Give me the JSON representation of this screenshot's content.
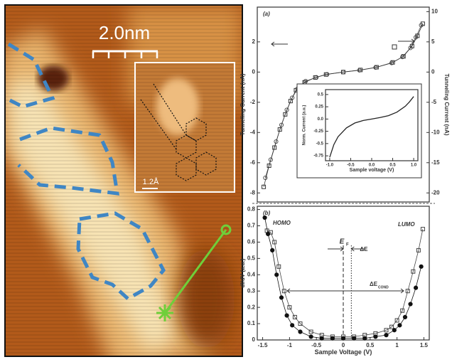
{
  "image": {
    "scale_label": "2.0nm",
    "inset_scale_label": "1.2Å"
  },
  "chart_data": [
    {
      "type": "line",
      "panel_label": "(a)",
      "ylabel": "Tunneling Current (nA)",
      "y2label": "Tunneling Current (nA)",
      "xlim": [
        -1.6,
        1.6
      ],
      "ylim": [
        -8.6,
        4.3
      ],
      "yticks": [
        2,
        0,
        -2,
        -4,
        -6,
        -8
      ],
      "y2lim": [
        -21.5,
        10.75
      ],
      "y2ticks": [
        10,
        5,
        0,
        -5,
        -10,
        -15,
        -20
      ],
      "series": [
        {
          "marker": "circle",
          "color": "#555555",
          "marker_fill": "none",
          "x": [
            -1.45,
            -1.35,
            -1.25,
            -1.15,
            -1.05,
            -0.95,
            -0.85,
            -0.7,
            -0.5,
            -0.3,
            0,
            0.3,
            0.6,
            0.9,
            1.1,
            1.25,
            1.35,
            1.45
          ],
          "values": [
            -7.0,
            -5.8,
            -4.6,
            -3.5,
            -2.5,
            -1.7,
            -1.1,
            -0.6,
            -0.35,
            -0.15,
            0,
            0.12,
            0.3,
            0.6,
            1.0,
            1.6,
            2.3,
            3.1
          ]
        },
        {
          "marker": "square",
          "color": "#333333",
          "marker_fill": "none",
          "axis": "y2",
          "x": [
            -1.48,
            -1.38,
            -1.28,
            -1.18,
            -1.08,
            -0.98,
            -0.88,
            -0.72,
            -0.52,
            -0.32,
            0,
            0.32,
            0.62,
            0.92,
            1.12,
            1.28,
            1.38,
            1.48
          ],
          "values": [
            -19.0,
            -15.5,
            -12.5,
            -9.5,
            -7.0,
            -4.8,
            -3.0,
            -1.7,
            -0.9,
            -0.4,
            0,
            0.35,
            0.8,
            1.6,
            2.6,
            4.3,
            6.0,
            8.0
          ]
        }
      ]
    },
    {
      "type": "line",
      "ylabel": "Norm. Current (a.u.)",
      "xlabel": "Sample voltage (V)",
      "xlim": [
        -1.1,
        1.1
      ],
      "ylim": [
        -0.85,
        0.6
      ],
      "yticks": [
        0.5,
        0.25,
        {
          "value": 0,
          "label": "0.0"
        },
        -0.25,
        -0.5,
        -0.75
      ],
      "xticks": [
        {
          "value": -1,
          "label": "-1.0"
        },
        -0.5,
        {
          "value": 0,
          "label": "0.0"
        },
        0.5,
        {
          "value": 1,
          "label": "1.0"
        }
      ],
      "series": [
        {
          "marker": "none",
          "color": "#222222",
          "x": [
            -1.0,
            -0.9,
            -0.8,
            -0.6,
            -0.4,
            -0.2,
            0,
            0.2,
            0.4,
            0.6,
            0.8,
            0.9,
            1.0
          ],
          "values": [
            -0.78,
            -0.52,
            -0.36,
            -0.18,
            -0.08,
            -0.03,
            0,
            0.03,
            0.07,
            0.14,
            0.26,
            0.35,
            0.46
          ]
        }
      ]
    },
    {
      "type": "line",
      "panel_label": "(b)",
      "homo_label": "HOMO",
      "lumo_label": "LUMO",
      "ef_label": "E",
      "ef_sub": "F",
      "delta_label": "ΔE",
      "cond_label": "ΔE",
      "cond_sub": "COND",
      "ylabel": "dI/dV (a.u.)",
      "xlabel": "Sample Voltage (V)",
      "xlim": [
        -1.6,
        1.6
      ],
      "ylim": [
        0,
        0.82
      ],
      "xticks": [
        -1.5,
        -1,
        -0.5,
        0,
        0.5,
        1,
        1.5
      ],
      "yticks": [
        0,
        0.1,
        0.2,
        0.3,
        0.4,
        0.5,
        0.6,
        0.7,
        0.8
      ],
      "reference_lines": [
        0,
        0.15
      ],
      "series": [
        {
          "marker": "square",
          "color": "#444444",
          "marker_fill": "none",
          "x": [
            -1.42,
            -1.35,
            -1.28,
            -1.2,
            -1.1,
            -1.0,
            -0.9,
            -0.8,
            -0.6,
            -0.4,
            -0.2,
            0,
            0.2,
            0.4,
            0.6,
            0.8,
            0.9,
            1.0,
            1.1,
            1.2,
            1.3,
            1.4,
            1.48
          ],
          "values": [
            0.67,
            0.66,
            0.6,
            0.45,
            0.3,
            0.2,
            0.14,
            0.1,
            0.05,
            0.03,
            0.02,
            0.02,
            0.02,
            0.03,
            0.04,
            0.06,
            0.08,
            0.12,
            0.18,
            0.3,
            0.42,
            0.55,
            0.68
          ]
        },
        {
          "marker": "circle",
          "color": "#111111",
          "marker_fill": "#111111",
          "x": [
            -1.46,
            -1.4,
            -1.32,
            -1.24,
            -1.15,
            -1.05,
            -0.95,
            -0.8,
            -0.6,
            -0.4,
            -0.2,
            0,
            0.2,
            0.4,
            0.6,
            0.8,
            0.95,
            1.05,
            1.15,
            1.25,
            1.35,
            1.45
          ],
          "values": [
            0.75,
            0.65,
            0.55,
            0.4,
            0.26,
            0.15,
            0.09,
            0.05,
            0.02,
            0.01,
            0.01,
            0.01,
            0.01,
            0.01,
            0.02,
            0.03,
            0.06,
            0.09,
            0.14,
            0.22,
            0.32,
            0.45
          ]
        }
      ]
    }
  ]
}
